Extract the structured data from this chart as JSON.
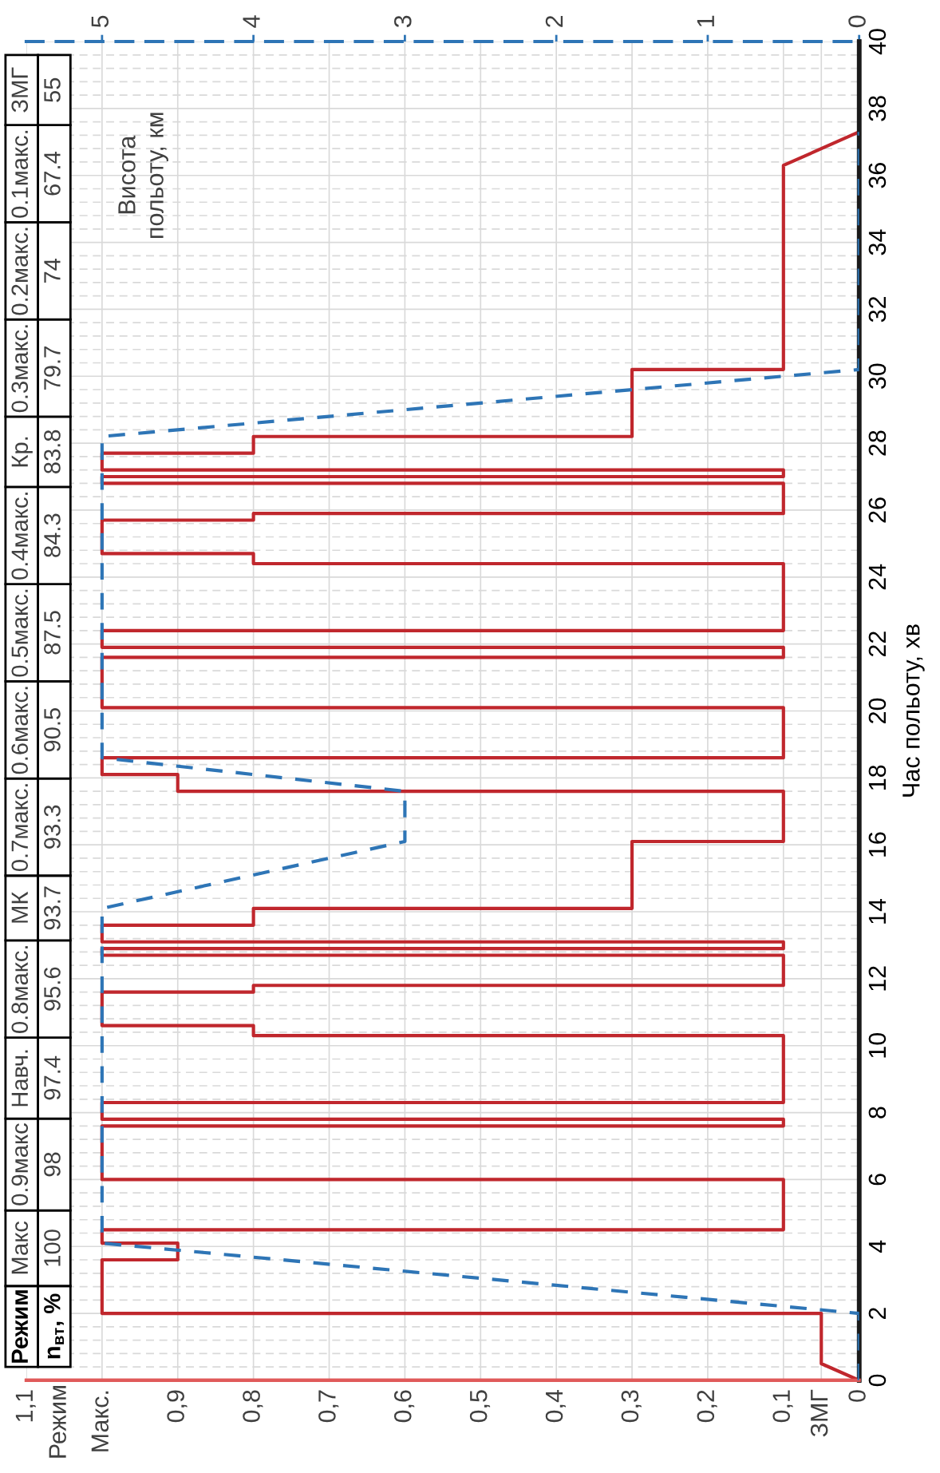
{
  "chart_data": {
    "type": "line",
    "ylabel": "Час польоту, хв",
    "x2label": "Висота\nпольоту, км",
    "ylim": [
      0,
      40
    ],
    "yticks": [
      0,
      2,
      4,
      6,
      8,
      10,
      12,
      14,
      16,
      18,
      20,
      22,
      24,
      26,
      28,
      30,
      32,
      34,
      36,
      38,
      40
    ],
    "xlim": [
      1.1,
      0
    ],
    "xticks": [
      0,
      {
        "value": 0.05,
        "label": "ЗМГ"
      },
      {
        "value": 0.1,
        "label": "0,1"
      },
      {
        "value": 0.2,
        "label": "0,2"
      },
      {
        "value": 0.3,
        "label": "0,3"
      },
      {
        "value": 0.4,
        "label": "0,4"
      },
      {
        "value": 0.5,
        "label": "0,5"
      },
      {
        "value": 0.6,
        "label": "0,6"
      },
      {
        "value": 0.7,
        "label": "0,7"
      },
      {
        "value": 0.8,
        "label": "0,8"
      },
      {
        "value": 0.9,
        "label": "0,9"
      },
      {
        "value": 1,
        "label": "Макс."
      },
      {
        "value": 1.1,
        "label": "1,1"
      }
    ],
    "x2lim": [
      5.5,
      0
    ],
    "x2ticks": [
      0,
      1,
      2,
      3,
      4,
      5
    ],
    "grid": true,
    "series": [
      {
        "color": "#c0272d",
        "values": [
          0,
          0.5,
          2,
          2,
          3.6,
          3.6,
          4.1,
          4.1,
          4.5,
          4.5,
          6,
          6,
          7.6,
          7.6,
          7.8,
          7.8,
          8.3,
          8.3,
          10.3,
          10.3,
          10.6,
          10.6,
          11.6,
          11.6,
          11.8,
          11.8,
          12.7,
          12.7,
          12.9,
          12.9,
          13.1,
          13.1,
          13.6,
          13.6,
          14.1,
          14.1,
          16.1,
          16.1,
          17.6,
          17.6,
          18.1,
          18.1,
          18.6,
          18.6,
          20.1,
          20.1,
          21.6,
          21.6,
          21.9,
          21.9,
          22.4,
          22.4,
          24.4,
          24.4,
          24.7,
          24.7,
          25.7,
          25.7,
          25.9,
          25.9,
          26.8,
          26.8,
          27,
          27,
          27.2,
          27.2,
          27.7,
          27.7,
          28.2,
          28.2,
          30.2,
          30.2,
          36.3,
          37.3
        ],
        "x": [
          0,
          0.05,
          0.05,
          1,
          1,
          0.9,
          0.9,
          1,
          1,
          0.1,
          0.1,
          1,
          1,
          0.1,
          0.1,
          1,
          1,
          0.1,
          0.1,
          0.8,
          0.8,
          1,
          1,
          0.8,
          0.8,
          0.1,
          0.1,
          1,
          1,
          0.1,
          0.1,
          1,
          1,
          0.8,
          0.8,
          0.3,
          0.3,
          0.1,
          0.1,
          0.9,
          0.9,
          1,
          1,
          0.1,
          0.1,
          1,
          1,
          0.1,
          0.1,
          1,
          1,
          0.1,
          0.1,
          0.8,
          0.8,
          1,
          1,
          0.8,
          0.8,
          0.1,
          0.1,
          1,
          1,
          0.1,
          0.1,
          1,
          1,
          0.8,
          0.8,
          0.3,
          0.3,
          0.1,
          0.1,
          0
        ]
      },
      {
        "color": "#2e75b6",
        "axis": "x2",
        "line_style": "dashed",
        "values": [
          0,
          2,
          4.1,
          14.1,
          16.1,
          17.6,
          18.6,
          28.2,
          30.2,
          37.3
        ],
        "x": [
          0,
          0,
          5,
          5,
          3,
          3,
          5,
          5,
          0,
          0
        ]
      }
    ],
    "annotations": [
      "Режим",
      "Режим",
      "n$_{вт}$, %",
      "Макс",
      "100",
      "0.9макс",
      "98",
      "Навч.",
      "97.4",
      "0.8макс.",
      "95.6",
      "МК",
      "93.7",
      "0.7макс.",
      "93.3",
      "0.6макс.",
      "90.5",
      "0.5макс.",
      "87.5",
      "0.4макс.",
      "84.3",
      "Кр.",
      "83.8",
      "0.3макс.",
      "79.7",
      "0.2макс.",
      "74",
      "0.1макс.",
      "67.4",
      "ЗМГ",
      "55"
    ]
  }
}
